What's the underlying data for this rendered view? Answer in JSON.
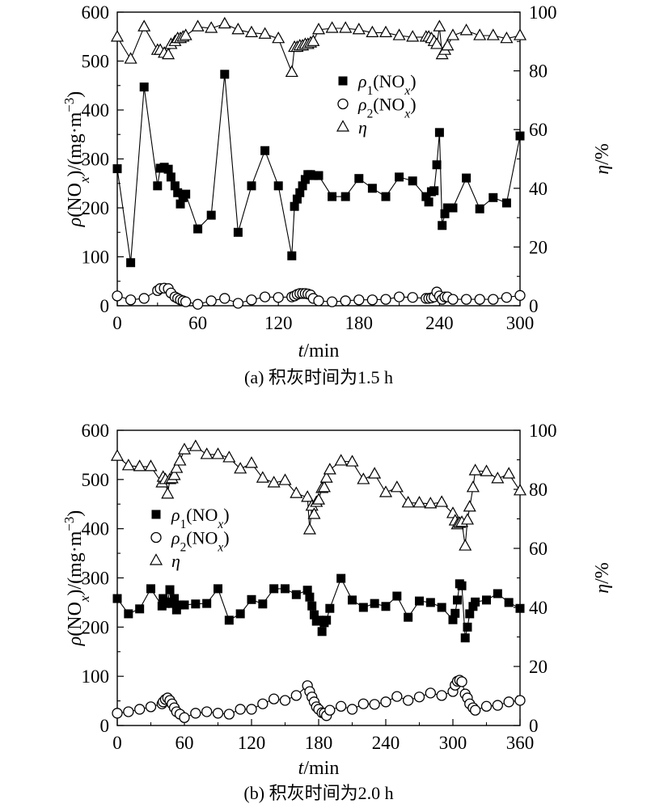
{
  "figure": {
    "background": "#ffffff",
    "ink": "#000000"
  },
  "chart_data": [
    {
      "type": "line",
      "caption": "(a) 积灰时间为1.5 h",
      "xlabel": [
        {
          "text": "t",
          "style": "italic"
        },
        {
          "text": "/min"
        }
      ],
      "ylabel": [
        {
          "text": "ρ",
          "style": "italic"
        },
        {
          "text": "(NO"
        },
        {
          "text": "x",
          "style": "sub-italic"
        },
        {
          "text": ")/(mg·m"
        },
        {
          "text": "−3",
          "style": "sup"
        },
        {
          "text": ")"
        }
      ],
      "y2label": [
        {
          "text": "η",
          "style": "italic"
        },
        {
          "text": "/%"
        }
      ],
      "xlim": [
        0,
        300
      ],
      "xticks": [
        0,
        60,
        120,
        180,
        240,
        300
      ],
      "ylim": [
        0,
        600
      ],
      "yticks": [
        0,
        100,
        200,
        300,
        400,
        500,
        600
      ],
      "y2lim": [
        0,
        100
      ],
      "y2ticks": [
        0,
        20,
        40,
        60,
        80,
        100
      ],
      "grid": false,
      "legend_position": "upper-right",
      "x": [
        0,
        10,
        20,
        30,
        32,
        35,
        38,
        40,
        43,
        45,
        47,
        49,
        51,
        60,
        70,
        80,
        90,
        100,
        110,
        120,
        130,
        132,
        134,
        136,
        138,
        140,
        142,
        144,
        146,
        150,
        160,
        170,
        180,
        190,
        200,
        210,
        220,
        230,
        232,
        234,
        236,
        238,
        240,
        242,
        244,
        246,
        250,
        260,
        270,
        280,
        290,
        300
      ],
      "series": [
        {
          "label": [
            {
              "text": "ρ",
              "style": "italic"
            },
            {
              "text": "1",
              "style": "sub"
            },
            {
              "text": "(NO"
            },
            {
              "text": "x",
              "style": "sub-italic"
            },
            {
              "text": ")"
            }
          ],
          "axis": "left",
          "marker": "filled-square",
          "values": [
            280,
            88,
            447,
            245,
            281,
            283,
            279,
            263,
            245,
            231,
            208,
            221,
            228,
            157,
            185,
            473,
            150,
            245,
            317,
            245,
            102,
            203,
            218,
            231,
            245,
            258,
            268,
            268,
            266,
            266,
            223,
            223,
            260,
            240,
            223,
            263,
            255,
            223,
            212,
            233,
            235,
            288,
            354,
            164,
            188,
            200,
            200,
            261,
            198,
            221,
            210,
            347
          ]
        },
        {
          "label": [
            {
              "text": "ρ",
              "style": "italic"
            },
            {
              "text": "2",
              "style": "sub"
            },
            {
              "text": "(NO"
            },
            {
              "text": "x",
              "style": "sub-italic"
            },
            {
              "text": ")"
            }
          ],
          "axis": "left",
          "marker": "open-circle",
          "values": [
            20,
            12,
            15,
            31,
            35,
            36,
            35,
            26,
            18,
            15,
            12,
            10,
            8,
            3,
            10,
            15,
            5,
            12,
            18,
            17,
            18,
            20,
            23,
            25,
            25,
            25,
            24,
            22,
            15,
            10,
            8,
            10,
            12,
            12,
            13,
            18,
            17,
            15,
            15,
            16,
            18,
            28,
            20,
            13,
            18,
            18,
            13,
            13,
            13,
            13,
            17,
            21
          ]
        },
        {
          "label": [
            {
              "text": "η",
              "style": "italic"
            }
          ],
          "axis": "right",
          "marker": "open-triangle",
          "values": [
            91.5,
            84,
            95,
            87,
            87,
            86,
            85.5,
            89,
            90,
            91,
            91,
            91.5,
            92,
            95,
            94.5,
            96,
            94,
            93,
            92.5,
            91,
            79.5,
            88,
            88,
            88.5,
            88.5,
            89,
            89,
            89.5,
            90,
            94,
            94.5,
            94.5,
            94,
            93,
            93,
            92,
            91.5,
            91.5,
            91.5,
            91,
            90,
            89,
            95,
            85.5,
            87,
            88.5,
            92,
            93.7,
            92,
            92,
            91,
            92
          ]
        }
      ]
    },
    {
      "type": "line",
      "caption": "(b) 积灰时间为2.0 h",
      "xlabel": [
        {
          "text": "t",
          "style": "italic"
        },
        {
          "text": "/min"
        }
      ],
      "ylabel": [
        {
          "text": "ρ",
          "style": "italic"
        },
        {
          "text": "(NO"
        },
        {
          "text": "x",
          "style": "sub-italic"
        },
        {
          "text": ")/(mg·m"
        },
        {
          "text": "−3",
          "style": "sup"
        },
        {
          "text": ")"
        }
      ],
      "y2label": [
        {
          "text": "η",
          "style": "italic"
        },
        {
          "text": "/%"
        }
      ],
      "xlim": [
        0,
        360
      ],
      "xticks": [
        0,
        60,
        120,
        180,
        240,
        300,
        360
      ],
      "ylim": [
        0,
        600
      ],
      "yticks": [
        0,
        100,
        200,
        300,
        400,
        500,
        600
      ],
      "y2lim": [
        0,
        100
      ],
      "y2ticks": [
        0,
        20,
        40,
        60,
        80,
        100
      ],
      "grid": false,
      "legend_position": "upper-left",
      "x": [
        0,
        10,
        20,
        30,
        40,
        41,
        43,
        45,
        47,
        49,
        51,
        53,
        56,
        60,
        70,
        80,
        90,
        100,
        110,
        120,
        130,
        140,
        150,
        160,
        170,
        172,
        174,
        176,
        178,
        180,
        183,
        185,
        187,
        190,
        200,
        210,
        220,
        230,
        240,
        250,
        260,
        270,
        280,
        290,
        300,
        302,
        304,
        306,
        308,
        311,
        313,
        315,
        318,
        320,
        330,
        340,
        350,
        360
      ],
      "series": [
        {
          "label": [
            {
              "text": "ρ",
              "style": "italic"
            },
            {
              "text": "1",
              "style": "sub"
            },
            {
              "text": "(NO"
            },
            {
              "text": "x",
              "style": "sub-italic"
            },
            {
              "text": ")"
            }
          ],
          "axis": "left",
          "marker": "filled-square",
          "values": [
            258,
            227,
            237,
            278,
            243,
            258,
            248,
            251,
            276,
            248,
            258,
            235,
            245,
            245,
            247,
            248,
            278,
            214,
            227,
            256,
            247,
            278,
            278,
            266,
            275,
            261,
            243,
            225,
            212,
            214,
            191,
            209,
            214,
            238,
            299,
            255,
            240,
            248,
            242,
            263,
            220,
            253,
            250,
            240,
            215,
            228,
            255,
            288,
            284,
            178,
            200,
            227,
            242,
            251,
            255,
            268,
            250,
            238
          ]
        },
        {
          "label": [
            {
              "text": "ρ",
              "style": "italic"
            },
            {
              "text": "2",
              "style": "sub"
            },
            {
              "text": "(NO"
            },
            {
              "text": "x",
              "style": "sub-italic"
            },
            {
              "text": ")"
            }
          ],
          "axis": "left",
          "marker": "open-circle",
          "values": [
            25,
            28,
            33,
            38,
            44,
            48,
            53,
            56,
            51,
            44,
            36,
            28,
            23,
            16,
            25,
            28,
            25,
            23,
            33,
            33,
            44,
            54,
            51,
            61,
            81,
            69,
            58,
            48,
            38,
            33,
            26,
            25,
            20,
            31,
            39,
            33,
            44,
            43,
            48,
            59,
            51,
            58,
            66,
            61,
            69,
            82,
            90,
            92,
            89,
            64,
            56,
            44,
            36,
            31,
            39,
            41,
            48,
            51
          ]
        },
        {
          "label": [
            {
              "text": "η",
              "style": "italic"
            }
          ],
          "axis": "right",
          "marker": "open-triangle",
          "values": [
            91.2,
            88,
            87.7,
            87.7,
            82.2,
            84.1,
            83.3,
            78.4,
            83.3,
            83.6,
            84.7,
            87.1,
            89.6,
            93.4,
            94.5,
            91.8,
            91.8,
            90.7,
            86.9,
            88.8,
            83.8,
            82.2,
            83,
            78.6,
            77.3,
            66.3,
            74.3,
            71.5,
            75.6,
            76.4,
            80.3,
            80.6,
            83.8,
            86.6,
            89.6,
            89.3,
            83.3,
            85.2,
            78.9,
            80.6,
            75.4,
            75.4,
            75.1,
            75.6,
            71.8,
            69.3,
            68,
            68.5,
            68.8,
            60.8,
            69.6,
            74,
            80.6,
            86.3,
            86,
            83.6,
            85.2,
            79.5
          ]
        }
      ]
    }
  ]
}
